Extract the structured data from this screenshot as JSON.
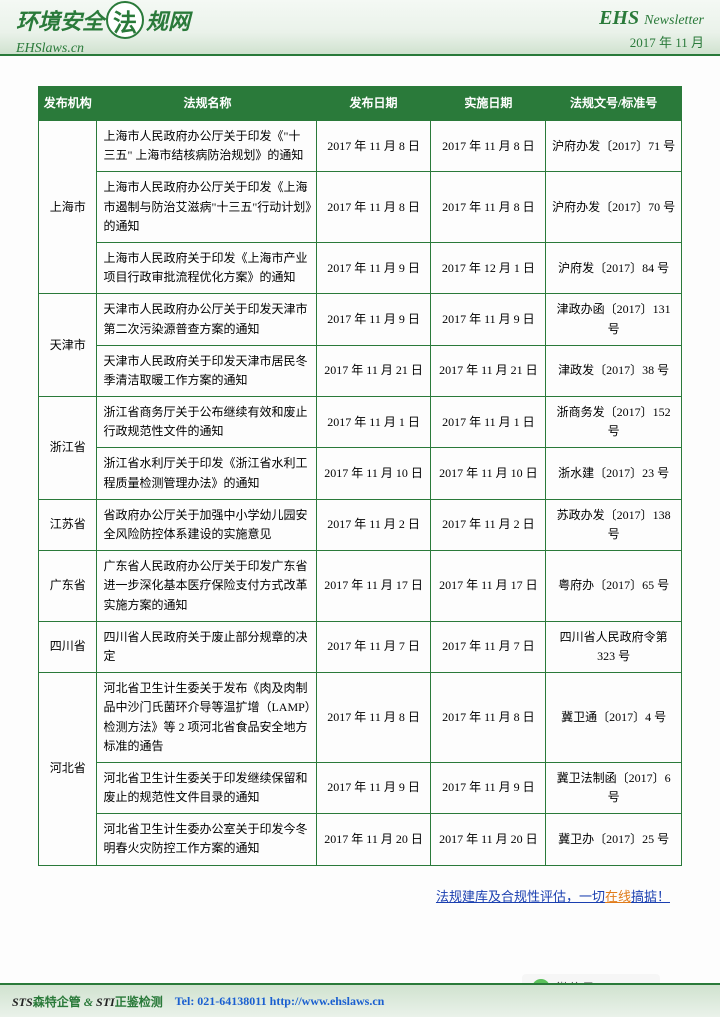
{
  "header": {
    "logo_prefix": "环境安全",
    "logo_circle": "法",
    "logo_suffix": "规网",
    "logo_sub": "EHSlaws.cn",
    "ehs": "EHS",
    "newsletter": "Newsletter",
    "date": "2017 年 11 月"
  },
  "table": {
    "headers": [
      "发布机构",
      "法规名称",
      "发布日期",
      "实施日期",
      "法规文号/标准号"
    ],
    "groups": [
      {
        "org": "上海市",
        "rows": [
          {
            "name": "上海市人民政府办公厅关于印发《\"十三五\" 上海市结核病防治规划》的通知",
            "pub": "2017 年 11 月 8 日",
            "eff": "2017 年 11 月 8 日",
            "doc": "沪府办发〔2017〕71 号"
          },
          {
            "name": "上海市人民政府办公厅关于印发《上海市遏制与防治艾滋病\"十三五\"行动计划》的通知",
            "pub": "2017 年 11 月 8 日",
            "eff": "2017 年 11 月 8 日",
            "doc": "沪府办发〔2017〕70 号"
          },
          {
            "name": "上海市人民政府关于印发《上海市产业项目行政审批流程优化方案》的通知",
            "pub": "2017 年 11 月 9 日",
            "eff": "2017 年 12 月 1 日",
            "doc": "沪府发〔2017〕84 号"
          }
        ]
      },
      {
        "org": "天津市",
        "rows": [
          {
            "name": "天津市人民政府办公厅关于印发天津市第二次污染源普查方案的通知",
            "pub": "2017 年 11 月 9 日",
            "eff": "2017 年 11 月 9 日",
            "doc": "津政办函〔2017〕131 号"
          },
          {
            "name": "天津市人民政府关于印发天津市居民冬季清洁取暖工作方案的通知",
            "pub": "2017 年 11 月 21 日",
            "eff": "2017 年 11 月 21 日",
            "doc": "津政发〔2017〕38 号"
          }
        ]
      },
      {
        "org": "浙江省",
        "rows": [
          {
            "name": "浙江省商务厅关于公布继续有效和废止行政规范性文件的通知",
            "pub": "2017 年 11 月 1 日",
            "eff": "2017 年 11 月 1 日",
            "doc": "浙商务发〔2017〕152 号"
          },
          {
            "name": "浙江省水利厅关于印发《浙江省水利工程质量检测管理办法》的通知",
            "pub": "2017 年 11 月 10 日",
            "eff": "2017 年 11 月 10 日",
            "doc": "浙水建〔2017〕23 号"
          }
        ]
      },
      {
        "org": "江苏省",
        "rows": [
          {
            "name": "省政府办公厅关于加强中小学幼儿园安全风险防控体系建设的实施意见",
            "pub": "2017 年 11 月 2 日",
            "eff": "2017 年 11 月 2 日",
            "doc": "苏政办发〔2017〕138 号"
          }
        ]
      },
      {
        "org": "广东省",
        "rows": [
          {
            "name": "广东省人民政府办公厅关于印发广东省进一步深化基本医疗保险支付方式改革实施方案的通知",
            "pub": "2017 年 11 月 17 日",
            "eff": "2017 年 11 月 17 日",
            "doc": "粤府办〔2017〕65 号"
          }
        ]
      },
      {
        "org": "四川省",
        "rows": [
          {
            "name": "四川省人民政府关于废止部分规章的决定",
            "pub": "2017 年 11 月 7 日",
            "eff": "2017 年 11 月 7 日",
            "doc": "四川省人民政府令第 323 号"
          }
        ]
      },
      {
        "org": "河北省",
        "rows": [
          {
            "name": "河北省卫生计生委关于发布《肉及肉制品中沙门氏菌环介导等温扩增（LAMP）检测方法》等 2 项河北省食品安全地方标准的通告",
            "pub": "2017 年 11 月 8 日",
            "eff": "2017 年 11 月 8 日",
            "doc": "冀卫通〔2017〕4 号"
          },
          {
            "name": "河北省卫生计生委关于印发继续保留和废止的规范性文件目录的通知",
            "pub": "2017 年 11 月 9 日",
            "eff": "2017 年 11 月 9 日",
            "doc": "冀卫法制函〔2017〕6 号"
          },
          {
            "name": "河北省卫生计生委办公室关于印发今冬明春火灾防控工作方案的通知",
            "pub": "2017 年 11 月 20 日",
            "eff": "2017 年 11 月 20 日",
            "doc": "冀卫办〔2017〕25 号"
          }
        ]
      }
    ]
  },
  "bottom": {
    "t1": "法规建库及合规性评估，一切",
    "t2": "在线",
    "t3": "搞掂！"
  },
  "footer": {
    "sts": "STS",
    "sts_cn": "森特企管",
    "amp": "&",
    "sti": "STI",
    "sti_cn": "正鉴检测",
    "contact": "Tel: 021-64138011  http://www.ehslaws.cn"
  },
  "wechat": {
    "label": "微信号: EHSlaws"
  },
  "colors": {
    "theme": "#2a7a3a",
    "link": "#1a3fb0",
    "orange": "#e07b1a"
  }
}
